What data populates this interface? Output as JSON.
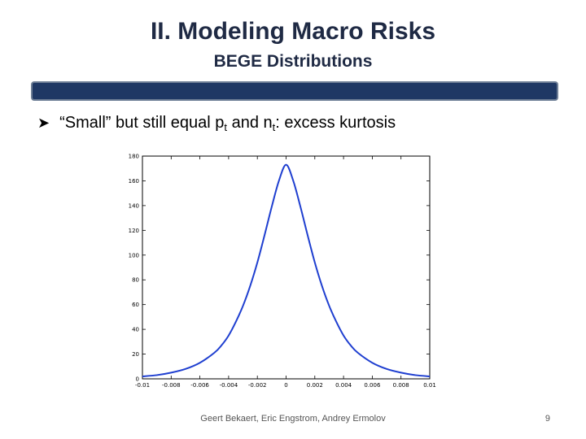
{
  "slide": {
    "title": "II. Modeling Macro Risks",
    "subtitle": "BEGE Distributions",
    "bullet_prefix": "“Small” but still equal p",
    "bullet_sub1": "t",
    "bullet_mid": " and n",
    "bullet_sub2": "t",
    "bullet_suffix": ": excess kurtosis",
    "footer": "Geert Bekaert, Eric Engstrom, Andrey Ermolov",
    "page_number": "9",
    "band_color": "#1f3864"
  },
  "chart_data": {
    "type": "line",
    "title": "",
    "xlabel": "",
    "ylabel": "",
    "xlim": [
      -0.01,
      0.01
    ],
    "ylim": [
      0,
      180
    ],
    "x_ticks": [
      -0.01,
      -0.008,
      -0.006,
      -0.004,
      -0.002,
      0,
      0.002,
      0.004,
      0.006,
      0.008,
      0.01
    ],
    "x_tick_labels": [
      "-0.01",
      "-0.008",
      "-0.006",
      "-0.004",
      "-0.002",
      "0",
      "0.002",
      "0.004",
      "0.006",
      "0.008",
      "0.01"
    ],
    "y_ticks": [
      0,
      20,
      40,
      60,
      80,
      100,
      120,
      140,
      160,
      180
    ],
    "y_tick_labels": [
      "0",
      "20",
      "40",
      "60",
      "80",
      "100",
      "120",
      "140",
      "160",
      "180"
    ],
    "grid": false,
    "series": [
      {
        "color": "#1f3fd0",
        "x": [
          -0.01,
          -0.009,
          -0.008,
          -0.007,
          -0.006,
          -0.005,
          -0.0045,
          -0.004,
          -0.0035,
          -0.003,
          -0.0025,
          -0.002,
          -0.0015,
          -0.001,
          -0.0005,
          0,
          0.0005,
          0.001,
          0.0015,
          0.002,
          0.0025,
          0.003,
          0.0035,
          0.004,
          0.0045,
          0.005,
          0.006,
          0.007,
          0.008,
          0.009,
          0.01
        ],
        "y": [
          2,
          3,
          5,
          8,
          13,
          21,
          27,
          35,
          46,
          59,
          75,
          94,
          116,
          139,
          160,
          173,
          160,
          139,
          116,
          94,
          75,
          59,
          46,
          35,
          27,
          21,
          13,
          8,
          5,
          3,
          2
        ]
      }
    ]
  }
}
